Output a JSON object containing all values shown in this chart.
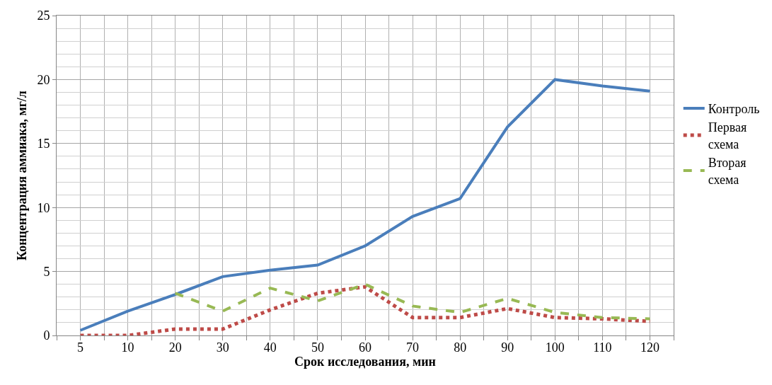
{
  "chart_data": {
    "type": "line",
    "xlabel": "Срок исследования, мин",
    "ylabel": "Концентрация аммиака, мг/л",
    "categories": [
      "5",
      "10",
      "20",
      "30",
      "40",
      "50",
      "60",
      "70",
      "80",
      "90",
      "100",
      "110",
      "120"
    ],
    "series": [
      {
        "name": "Контроль",
        "color": "#4a7ebb",
        "line_style": "solid",
        "values": [
          0.4,
          1.9,
          3.2,
          4.6,
          5.1,
          5.5,
          7.0,
          9.3,
          10.7,
          16.3,
          20.0,
          19.5,
          19.1
        ]
      },
      {
        "name": "Первая схема",
        "color": "#be4b48",
        "line_style": "dotted",
        "values": [
          0,
          0,
          0.5,
          0.5,
          2.0,
          3.3,
          3.8,
          1.4,
          1.4,
          2.1,
          1.4,
          1.3,
          1.1
        ]
      },
      {
        "name": "Вторая схема",
        "color": "#98b954",
        "line_style": "dashed",
        "values": [
          null,
          null,
          3.3,
          1.9,
          3.7,
          2.7,
          4.0,
          2.3,
          1.8,
          2.9,
          1.8,
          1.4,
          1.3
        ]
      }
    ],
    "ylim": [
      0,
      25
    ],
    "yticks": [
      0,
      5,
      10,
      15,
      20,
      25
    ],
    "grid": true,
    "legend": "right",
    "marker": "none"
  }
}
